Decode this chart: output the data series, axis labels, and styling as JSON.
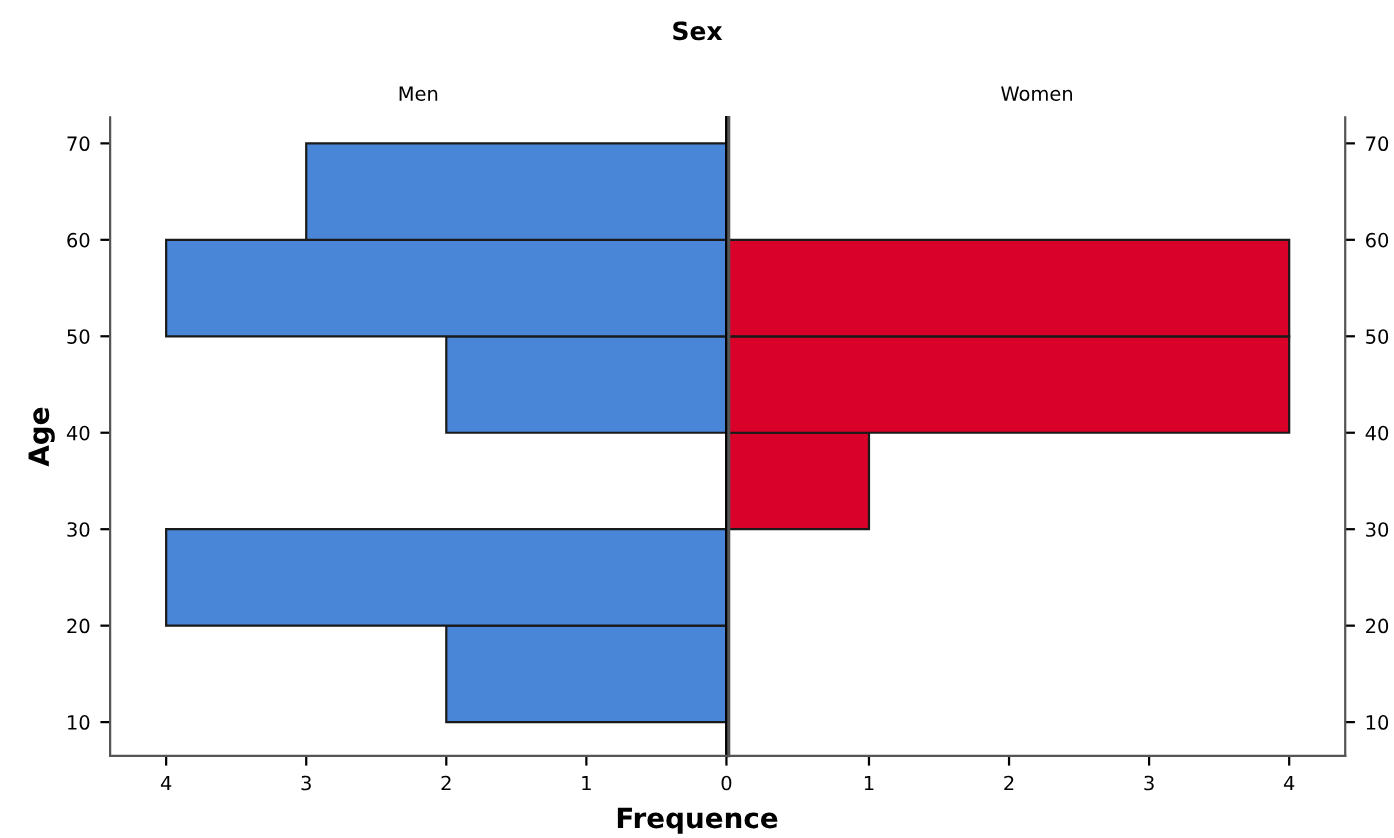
{
  "chart_data": [
    {
      "type": "histogram",
      "orientation": "horizontal",
      "title": "Sex",
      "subtitle": "Men",
      "xlabel": "Frequence",
      "ylabel": "Age",
      "bins": [
        10,
        20,
        30,
        40,
        50,
        60,
        70
      ],
      "values": [
        2,
        4,
        null,
        2,
        4,
        3
      ],
      "color": "#4a86d8",
      "xlim": [
        4.4,
        0
      ],
      "xticks": [
        4,
        3,
        2,
        1,
        0
      ],
      "ylim": [
        6.5,
        72.7
      ],
      "yticks": [
        10,
        20,
        30,
        40,
        50,
        60,
        70
      ],
      "tick_labels": "xy_left",
      "grid": false,
      "legend": false
    },
    {
      "type": "histogram",
      "orientation": "horizontal",
      "subtitle": "Women",
      "bins": [
        10,
        20,
        30,
        40,
        50,
        60,
        70
      ],
      "values": [
        0,
        0,
        1,
        4,
        4,
        0
      ],
      "color": "#d9002a",
      "xlim": [
        0,
        4.4
      ],
      "xticks": [
        1,
        2,
        3,
        4
      ],
      "ylim": [
        6.5,
        72.7
      ],
      "yticks": [
        10,
        20,
        30,
        40,
        50,
        60,
        70
      ],
      "tick_labels": "xy_right",
      "grid": false,
      "legend": false
    }
  ]
}
